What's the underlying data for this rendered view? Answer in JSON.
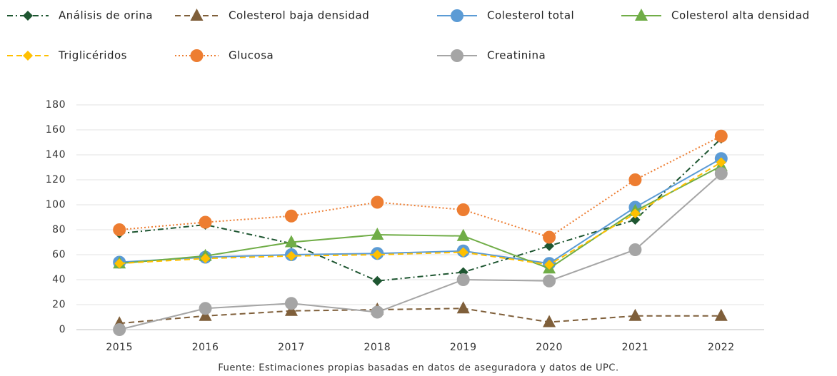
{
  "chart_data": {
    "type": "line",
    "source": "Fuente: Estimaciones propias basadas en datos de aseguradora y datos de UPC.",
    "categories": [
      "2015",
      "2016",
      "2017",
      "2018",
      "2019",
      "2020",
      "2021",
      "2022"
    ],
    "ylim": [
      0,
      180
    ],
    "yticks": [
      0,
      20,
      40,
      60,
      80,
      100,
      120,
      140,
      160,
      180
    ],
    "grid": true,
    "legend": "top",
    "series": [
      {
        "name": "Análisis de orina",
        "color": "#1e5631",
        "marker": "diamond",
        "line_style": "dashdot",
        "values": [
          77,
          84,
          69,
          39,
          46,
          67,
          88,
          153
        ]
      },
      {
        "name": "Colesterol baja densidad",
        "color": "#7f5f3a",
        "marker": "triangle",
        "line_style": "dashed",
        "values": [
          5,
          11,
          15,
          16,
          17,
          6,
          11,
          11
        ]
      },
      {
        "name": "Colesterol total",
        "color": "#5b9bd5",
        "marker": "circle",
        "line_style": "solid",
        "values": [
          54,
          58,
          60,
          61,
          63,
          53,
          98,
          137
        ]
      },
      {
        "name": "Colesterol alta densidad",
        "color": "#70ad47",
        "marker": "triangle",
        "line_style": "solid",
        "values": [
          53,
          59,
          70,
          76,
          75,
          49,
          95,
          131
        ]
      },
      {
        "name": "Triglicéridos",
        "color": "#ffc000",
        "marker": "diamond",
        "line_style": "dashed",
        "values": [
          53,
          57,
          59,
          60,
          62,
          52,
          93,
          134
        ]
      },
      {
        "name": "Glucosa",
        "color": "#ed7d31",
        "marker": "circle",
        "line_style": "dotted",
        "values": [
          80,
          86,
          91,
          102,
          96,
          74,
          120,
          155
        ]
      },
      {
        "name": "Creatinina",
        "color": "#a5a5a5",
        "marker": "circle",
        "line_style": "solid",
        "values": [
          0,
          17,
          21,
          14,
          40,
          39,
          64,
          125
        ]
      }
    ]
  }
}
